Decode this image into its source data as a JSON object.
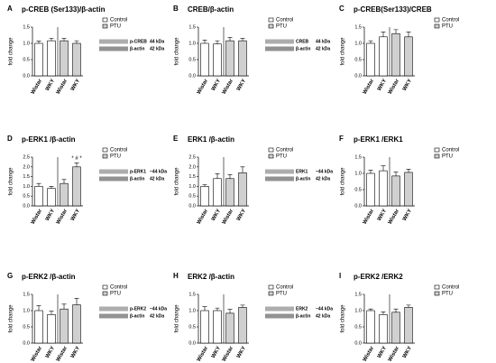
{
  "chart_data": [
    {
      "type": "bar",
      "panel": "A",
      "title": "p-CREB (Ser133)/β-actin",
      "ylabel": "fold change",
      "categories": [
        "Wistar",
        "WKY",
        "Wistar",
        "WKY"
      ],
      "series": [
        {
          "name": "Control",
          "color": "#ffffff",
          "values": [
            1.0,
            1.08,
            null,
            null
          ],
          "errors": [
            0.07,
            0.08,
            null,
            null
          ]
        },
        {
          "name": "PTU",
          "color": "#d0d0d0",
          "values": [
            null,
            null,
            1.08,
            1.0
          ],
          "errors": [
            null,
            null,
            0.07,
            0.08
          ]
        }
      ],
      "ylim": [
        0,
        1.5
      ],
      "yticks": [
        {
          "value": 0,
          "label": "0.0"
        },
        0.5,
        {
          "value": 1,
          "label": "1.0"
        },
        1.5
      ],
      "blot": [
        {
          "band": "p-CREB",
          "size": "44 kDa"
        },
        {
          "band": "β-actin",
          "size": "42 kDa"
        }
      ]
    },
    {
      "type": "bar",
      "panel": "B",
      "title": "CREB/β-actin",
      "ylabel": "fold change",
      "categories": [
        "Wistar",
        "WKY",
        "Wistar",
        "WKY"
      ],
      "series": [
        {
          "name": "Control",
          "color": "#ffffff",
          "values": [
            1.0,
            0.98,
            null,
            null
          ],
          "errors": [
            0.1,
            0.1,
            null,
            null
          ]
        },
        {
          "name": "PTU",
          "color": "#d0d0d0",
          "values": [
            null,
            null,
            1.08,
            1.08
          ],
          "errors": [
            null,
            null,
            0.1,
            0.07
          ]
        }
      ],
      "ylim": [
        0,
        1.5
      ],
      "yticks": [
        {
          "value": 0,
          "label": "0.0"
        },
        0.5,
        {
          "value": 1,
          "label": "1.0"
        },
        1.5
      ],
      "blot": [
        {
          "band": "CREB",
          "size": "44 kDa"
        },
        {
          "band": "β-actin",
          "size": "42 kDa"
        }
      ]
    },
    {
      "type": "bar",
      "panel": "C",
      "title": "p-CREB(Ser133)/CREB",
      "ylabel": "fold change",
      "categories": [
        "Wistar",
        "WKY",
        "Wistar",
        "WKY"
      ],
      "series": [
        {
          "name": "Control",
          "color": "#ffffff",
          "values": [
            1.0,
            1.2,
            null,
            null
          ],
          "errors": [
            0.08,
            0.15,
            null,
            null
          ]
        },
        {
          "name": "PTU",
          "color": "#d0d0d0",
          "values": [
            null,
            null,
            1.3,
            1.2
          ],
          "errors": [
            null,
            null,
            0.12,
            0.15
          ]
        }
      ],
      "ylim": [
        0,
        1.5
      ],
      "yticks": [
        {
          "value": 0,
          "label": "0.0"
        },
        0.5,
        {
          "value": 1,
          "label": "1.0"
        },
        1.5
      ]
    },
    {
      "type": "bar",
      "panel": "D",
      "title": "p-ERK1 /β-actin",
      "ylabel": "fold change",
      "categories": [
        "Wistar",
        "WKY",
        "Wistar",
        "WKY"
      ],
      "series": [
        {
          "name": "Control",
          "color": "#ffffff",
          "values": [
            1.0,
            0.9,
            null,
            null
          ],
          "errors": [
            0.15,
            0.1,
            null,
            null
          ]
        },
        {
          "name": "PTU",
          "color": "#d0d0d0",
          "values": [
            null,
            null,
            1.15,
            2.0
          ],
          "errors": [
            null,
            null,
            0.2,
            0.2
          ]
        }
      ],
      "ylim": [
        0,
        2.5
      ],
      "yticks": [
        {
          "value": 0,
          "label": "0.0"
        },
        0.5,
        {
          "value": 1,
          "label": "1.0"
        },
        1.5,
        {
          "value": 2,
          "label": "2.0"
        },
        2.5
      ],
      "annotation": "* # *",
      "blot": [
        {
          "band": "p-ERK1",
          "size": "~44 kDa"
        },
        {
          "band": "β-actin",
          "size": "42 kDa"
        }
      ]
    },
    {
      "type": "bar",
      "panel": "E",
      "title": "ERK1 /β-actin",
      "ylabel": "fold change",
      "categories": [
        "Wistar",
        "WKY",
        "Wistar",
        "WKY"
      ],
      "series": [
        {
          "name": "Control",
          "color": "#ffffff",
          "values": [
            1.0,
            1.4,
            null,
            null
          ],
          "errors": [
            0.1,
            0.25,
            null,
            null
          ]
        },
        {
          "name": "PTU",
          "color": "#d0d0d0",
          "values": [
            null,
            null,
            1.4,
            1.7
          ],
          "errors": [
            null,
            null,
            0.2,
            0.3
          ]
        }
      ],
      "ylim": [
        0,
        2.5
      ],
      "yticks": [
        {
          "value": 0,
          "label": "0.0"
        },
        0.5,
        {
          "value": 1,
          "label": "1.0"
        },
        1.5,
        {
          "value": 2,
          "label": "2.0"
        },
        2.5
      ],
      "blot": [
        {
          "band": "ERK1",
          "size": "~44 kDa"
        },
        {
          "band": "β-actin",
          "size": "42 kDa"
        }
      ]
    },
    {
      "type": "bar",
      "panel": "F",
      "title": "p-ERK1 /ERK1",
      "ylabel": "fold change",
      "categories": [
        "Wistar",
        "WKY",
        "Wistar",
        "WKY"
      ],
      "series": [
        {
          "name": "Control",
          "color": "#ffffff",
          "values": [
            1.0,
            1.08,
            null,
            null
          ],
          "errors": [
            0.1,
            0.15,
            null,
            null
          ]
        },
        {
          "name": "PTU",
          "color": "#d0d0d0",
          "values": [
            null,
            null,
            0.92,
            1.03
          ],
          "errors": [
            null,
            null,
            0.12,
            0.1
          ]
        }
      ],
      "ylim": [
        0,
        1.5
      ],
      "yticks": [
        {
          "value": 0,
          "label": "0.0"
        },
        0.5,
        {
          "value": 1,
          "label": "1.0"
        },
        1.5
      ]
    },
    {
      "type": "bar",
      "panel": "G",
      "title": "p-ERK2 /β-actin",
      "ylabel": "fold change",
      "categories": [
        "Wistar",
        "WKY",
        "Wistar",
        "WKY"
      ],
      "series": [
        {
          "name": "Control",
          "color": "#ffffff",
          "values": [
            1.0,
            0.88,
            null,
            null
          ],
          "errors": [
            0.15,
            0.1,
            null,
            null
          ]
        },
        {
          "name": "PTU",
          "color": "#d0d0d0",
          "values": [
            null,
            null,
            1.05,
            1.18
          ],
          "errors": [
            null,
            null,
            0.15,
            0.2
          ]
        }
      ],
      "ylim": [
        0,
        1.5
      ],
      "yticks": [
        {
          "value": 0,
          "label": "0.0"
        },
        0.5,
        {
          "value": 1,
          "label": "1.0"
        },
        1.5
      ],
      "blot": [
        {
          "band": "p-ERK2",
          "size": "~44 kDa"
        },
        {
          "band": "β-actin",
          "size": "42 kDa"
        }
      ]
    },
    {
      "type": "bar",
      "panel": "H",
      "title": "ERK2 /β-actin",
      "ylabel": "fold change",
      "categories": [
        "Wistar",
        "WKY",
        "Wistar",
        "WKY"
      ],
      "series": [
        {
          "name": "Control",
          "color": "#ffffff",
          "values": [
            1.0,
            1.0,
            null,
            null
          ],
          "errors": [
            0.12,
            0.08,
            null,
            null
          ]
        },
        {
          "name": "PTU",
          "color": "#d0d0d0",
          "values": [
            null,
            null,
            0.92,
            1.1
          ],
          "errors": [
            null,
            null,
            0.12,
            0.07
          ]
        }
      ],
      "ylim": [
        0,
        1.5
      ],
      "yticks": [
        {
          "value": 0,
          "label": "0.0"
        },
        0.5,
        {
          "value": 1,
          "label": "1.0"
        },
        1.5
      ],
      "blot": [
        {
          "band": "ERK2",
          "size": "~44 kDa"
        },
        {
          "band": "β-actin",
          "size": "42 kDa"
        }
      ]
    },
    {
      "type": "bar",
      "panel": "I",
      "title": "p-ERK2 /ERK2",
      "ylabel": "fold change",
      "categories": [
        "Wistar",
        "WKY",
        "Wistar",
        "WKY"
      ],
      "series": [
        {
          "name": "Control",
          "color": "#ffffff",
          "values": [
            1.0,
            0.88,
            null,
            null
          ],
          "errors": [
            0.05,
            0.08,
            null,
            null
          ]
        },
        {
          "name": "PTU",
          "color": "#d0d0d0",
          "values": [
            null,
            null,
            0.95,
            1.1
          ],
          "errors": [
            null,
            null,
            0.1,
            0.07
          ]
        }
      ],
      "ylim": [
        0,
        1.5
      ],
      "yticks": [
        {
          "value": 0,
          "label": "0.0"
        },
        0.5,
        {
          "value": 1,
          "label": "1.0"
        },
        1.5
      ]
    }
  ]
}
